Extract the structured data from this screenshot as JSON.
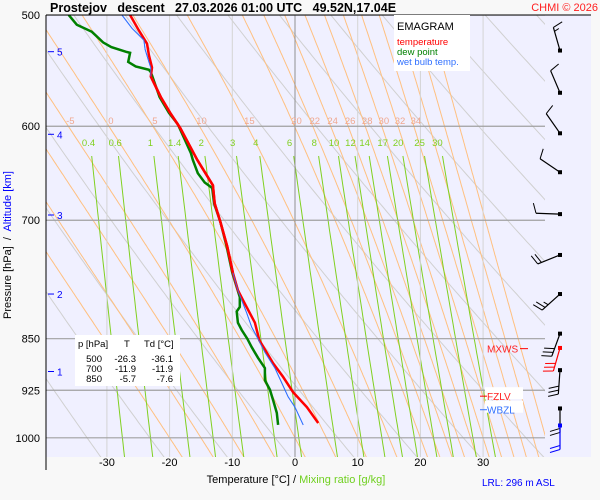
{
  "header": {
    "title": "Prostejov   descent   27.03.2026 01:00 UTC   49.52N,17.04E",
    "copyright": "CHMI © 2026"
  },
  "legend": {
    "title": "EMAGRAM",
    "temperature": "temperature",
    "dew_point": "dew point",
    "wet_bulb": "wet bulb temp."
  },
  "table": {
    "headers": [
      "p [hPa]",
      "T",
      "Td [°C]"
    ],
    "rows": [
      [
        "500",
        "-26.3",
        "-36.1"
      ],
      [
        "700",
        "-11.9",
        "-11.9"
      ],
      [
        "850",
        "-5.7",
        "-7.6"
      ]
    ]
  },
  "levels": {
    "mxws": {
      "label": "MXWS",
      "p": 864
    },
    "fzlv": {
      "label": "FZLV",
      "p": 934
    },
    "wbzl": {
      "label": "WBZL",
      "p": 955
    }
  },
  "footer": {
    "lrl": "LRL: 296 m ASL"
  },
  "colors": {
    "temperature": "#ff0000",
    "dew_point": "#008000",
    "wet_bulb": "#3070ff",
    "plot_bg": "#f0f0ff",
    "moist_adiabat": "#ffc080",
    "dry_adiabat": "#d0d0d0",
    "mixing_ratio": "#80d020",
    "altitude": "#0000ff"
  },
  "chart_data": {
    "type": "line",
    "title": "EMAGRAM",
    "xlabel": "Temperature [°C]",
    "xlabel2": "Mixing ratio [g/kg]",
    "xlabel_sep": "/",
    "ylabel": "Pressure [hPa]",
    "ylabel2": "Altitude [km]",
    "ylabel_sep": "/",
    "xlim": [
      -38.4,
      40
    ],
    "ylim": [
      500,
      1032
    ],
    "x_ticks": [
      -30,
      -20,
      -10,
      0,
      10,
      20,
      30
    ],
    "y_ticks": [
      500,
      600,
      700,
      850,
      925,
      1000
    ],
    "altitude_ticks": [
      {
        "km": "1",
        "p": 897
      },
      {
        "km": "2",
        "p": 790
      },
      {
        "km": "3",
        "p": 694
      },
      {
        "km": "4",
        "p": 608
      },
      {
        "km": "5",
        "p": 531
      }
    ],
    "moist_adiabat_labels": [
      "-5",
      "0",
      "5",
      "10",
      "15",
      "20",
      "22",
      "24",
      "26",
      "28",
      "30",
      "32",
      "34"
    ],
    "mixing_ratio_labels": [
      "0.4",
      "0.6",
      "1",
      "1.4",
      "2",
      "3",
      "4",
      "6",
      "8",
      "10",
      "12",
      "14",
      "17",
      "20",
      "25",
      "30"
    ],
    "dry_adiabats_K": [
      230,
      240,
      250,
      260,
      270,
      280,
      290,
      300,
      310,
      320,
      330,
      340,
      350,
      360,
      370,
      380,
      390
    ],
    "series": [
      {
        "name": "temperature",
        "p": [
          500,
          512,
          524,
          534,
          545,
          553,
          572,
          587,
          602,
          634,
          661,
          681,
          702,
          731,
          763,
          785,
          798,
          828,
          852,
          885,
          905,
          928,
          951,
          976
        ],
        "t": [
          -26.3,
          -25.0,
          -23.6,
          -23.3,
          -22.8,
          -23.0,
          -21.4,
          -19.9,
          -18.3,
          -15.6,
          -13.1,
          -12.8,
          -11.9,
          -10.8,
          -9.9,
          -9.1,
          -8.3,
          -6.4,
          -5.7,
          -3.5,
          -1.9,
          -0.3,
          1.9,
          3.7
        ]
      },
      {
        "name": "dew point",
        "p": [
          500,
          508,
          514,
          523,
          527,
          531,
          532,
          540,
          544,
          547,
          549,
          572,
          587,
          598,
          627,
          634,
          648,
          658,
          664,
          681,
          702,
          731,
          763,
          794,
          807,
          813,
          828,
          838,
          850,
          862,
          877,
          892,
          910,
          924,
          940,
          960,
          979
        ],
        "t": [
          -36.1,
          -34.8,
          -32.4,
          -30.6,
          -29.3,
          -27.0,
          -26.3,
          -26.6,
          -25.4,
          -23.3,
          -23.0,
          -21.6,
          -20.1,
          -18.7,
          -16.6,
          -16.3,
          -15.5,
          -14.4,
          -13.2,
          -12.9,
          -11.9,
          -10.9,
          -10.0,
          -8.8,
          -8.8,
          -9.3,
          -9.1,
          -8.5,
          -7.6,
          -6.9,
          -5.9,
          -4.8,
          -4.8,
          -4.0,
          -3.5,
          -2.9,
          -2.7
        ]
      },
      {
        "name": "wet bulb temp.",
        "p": [
          500,
          511,
          521,
          529,
          540,
          545,
          553,
          572,
          587,
          602,
          634,
          661,
          681,
          702,
          731,
          763,
          785,
          798,
          815,
          834,
          847,
          869,
          892,
          914,
          935,
          951,
          979
        ],
        "t": [
          -27.6,
          -26.0,
          -24.1,
          -23.9,
          -23.3,
          -23.0,
          -23.0,
          -21.4,
          -19.9,
          -18.3,
          -15.6,
          -13.1,
          -12.8,
          -12.0,
          -10.8,
          -9.9,
          -9.1,
          -8.5,
          -7.7,
          -6.9,
          -6.1,
          -4.8,
          -3.2,
          -2.1,
          -1.1,
          0.0,
          1.3
        ]
      }
    ],
    "wind_barbs": [
      {
        "p": 530,
        "dir": 164,
        "kt": 15,
        "color": "#000000"
      },
      {
        "p": 568,
        "dir": 157,
        "kt": 10,
        "color": "#000000"
      },
      {
        "p": 607,
        "dir": 145,
        "kt": 10,
        "color": "#000000"
      },
      {
        "p": 647,
        "dir": 124,
        "kt": 10,
        "color": "#000000"
      },
      {
        "p": 693,
        "dir": 92,
        "kt": 10,
        "color": "#000000"
      },
      {
        "p": 741,
        "dir": 68,
        "kt": 20,
        "color": "#000000"
      },
      {
        "p": 790,
        "dir": 48,
        "kt": 25,
        "color": "#000000"
      },
      {
        "p": 843,
        "dir": 20,
        "kt": 30,
        "color": "#000000"
      },
      {
        "p": 863,
        "dir": 16,
        "kt": 30,
        "color": "#ff0000"
      },
      {
        "p": 895,
        "dir": 4,
        "kt": 30,
        "color": "#000000"
      },
      {
        "p": 953,
        "dir": 0,
        "kt": 20,
        "color": "#000000"
      },
      {
        "p": 980,
        "dir": 0,
        "kt": 20,
        "color": "#0000ff"
      }
    ],
    "grid": true,
    "legend_position": "top-right"
  }
}
